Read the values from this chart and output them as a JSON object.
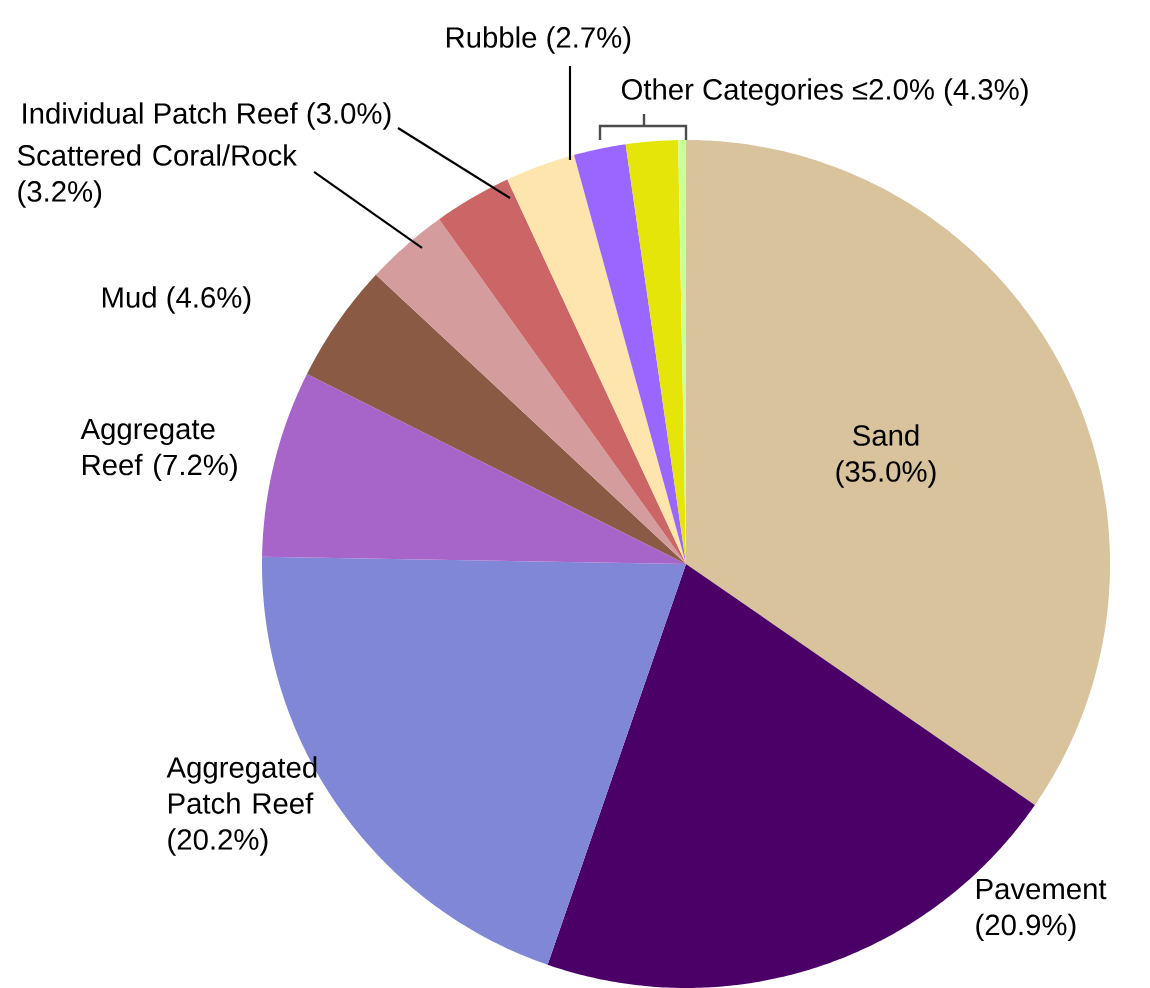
{
  "chart_data": {
    "type": "pie",
    "categories": [
      "Sand",
      "Pavement",
      "Aggregated Patch Reef",
      "Aggregate Reef",
      "Mud",
      "Scattered Coral/Rock",
      "Individual Patch Reef",
      "Rubble",
      null,
      null,
      null
    ],
    "values": [
      35.0,
      20.9,
      20.2,
      7.2,
      4.6,
      3.2,
      3.0,
      2.7,
      2.0,
      2.0,
      0.3
    ],
    "value_labels": [
      "(35.0%)",
      "(20.9%)",
      "(20.2%)",
      "(7.2%)",
      "(4.6%)",
      "(3.2%)",
      "(3.0%)",
      "(2.7%)",
      null,
      null,
      null
    ],
    "colors": [
      "#d8c39d",
      "#4b0068",
      "#7f87d6",
      "#a765c9",
      "#8a5a44",
      "#d49c9c",
      "#cc6666",
      "#fde5ad",
      "#9966ff",
      "#e5e50a",
      "#ccff99"
    ],
    "annotations": [
      "Other Categories ≤2.0% (4.3%)"
    ]
  }
}
